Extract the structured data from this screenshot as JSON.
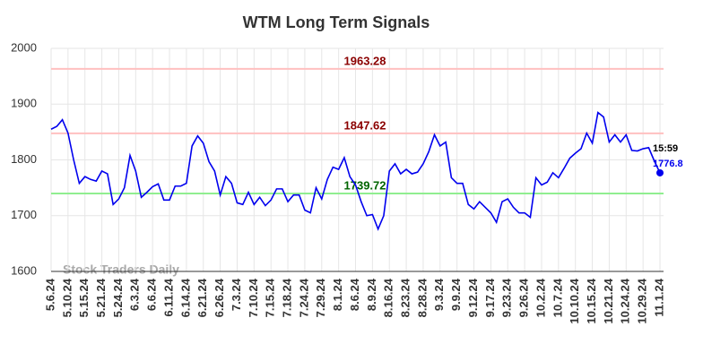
{
  "chart_data": {
    "type": "line",
    "title": "WTM Long Term Signals",
    "watermark": "Stock Traders Daily",
    "categories": [
      "5.6.24",
      null,
      null,
      "5.10.24",
      null,
      null,
      "5.15.24",
      null,
      null,
      "5.21.24",
      null,
      null,
      "5.24.24",
      null,
      null,
      "6.3.24",
      null,
      null,
      "6.6.24",
      null,
      null,
      "6.11.24",
      null,
      null,
      "6.14.24",
      null,
      null,
      "6.21.24",
      null,
      null,
      "6.26.24",
      null,
      null,
      "7.3.24",
      null,
      null,
      "7.10.24",
      null,
      null,
      "7.15.24",
      null,
      null,
      "7.18.24",
      null,
      null,
      "7.24.24",
      null,
      null,
      "7.29.24",
      null,
      null,
      "8.1.24",
      null,
      null,
      "8.6.24",
      null,
      null,
      "8.9.24",
      null,
      null,
      "8.16.24",
      null,
      null,
      "8.23.24",
      null,
      null,
      "8.28.24",
      null,
      null,
      "9.3.24",
      null,
      null,
      "9.9.24",
      null,
      null,
      "9.12.24",
      null,
      null,
      "9.17.24",
      null,
      null,
      "9.23.24",
      null,
      null,
      "9.26.24",
      null,
      null,
      "10.2.24",
      null,
      null,
      "10.7.24",
      null,
      null,
      "10.10.24",
      null,
      null,
      "10.15.24",
      null,
      null,
      "10.21.24",
      null,
      null,
      "10.24.24",
      null,
      null,
      "10.29.24",
      null,
      null,
      "11.1.24"
    ],
    "values": [
      1855,
      1860,
      1872,
      1848,
      1800,
      1758,
      1770,
      1765,
      1762,
      1780,
      1775,
      1720,
      1730,
      1750,
      1808,
      1780,
      1733,
      1742,
      1752,
      1757,
      1728,
      1728,
      1753,
      1753,
      1758,
      1825,
      1843,
      1830,
      1797,
      1780,
      1737,
      1770,
      1758,
      1723,
      1720,
      1742,
      1720,
      1733,
      1718,
      1728,
      1748,
      1748,
      1725,
      1737,
      1737,
      1710,
      1705,
      1750,
      1730,
      1765,
      1787,
      1783,
      1804,
      1770,
      1755,
      1725,
      1700,
      1702,
      1676,
      1700,
      1780,
      1793,
      1775,
      1783,
      1775,
      1778,
      1793,
      1815,
      1845,
      1825,
      1832,
      1768,
      1758,
      1758,
      1720,
      1712,
      1725,
      1715,
      1705,
      1688,
      1725,
      1730,
      1715,
      1705,
      1705,
      1697,
      1768,
      1755,
      1760,
      1777,
      1768,
      1785,
      1803,
      1812,
      1820,
      1848,
      1830,
      1885,
      1877,
      1832,
      1845,
      1832,
      1845,
      1817,
      1816,
      1820,
      1822,
      1798,
      1776.8
    ],
    "color": "#0000ee",
    "last_time": "15:59",
    "hlines": [
      {
        "value": 1963.28,
        "color": "#ffc0c0",
        "text_color": "#8b0000"
      },
      {
        "value": 1847.62,
        "color": "#ffc0c0",
        "text_color": "#8b0000"
      },
      {
        "value": 1739.72,
        "color": "#90ee90",
        "text_color": "#006400"
      }
    ],
    "ylim": [
      1600,
      2000
    ],
    "yticks": [
      1600,
      1700,
      1800,
      1900,
      2000
    ],
    "grid": true
  }
}
